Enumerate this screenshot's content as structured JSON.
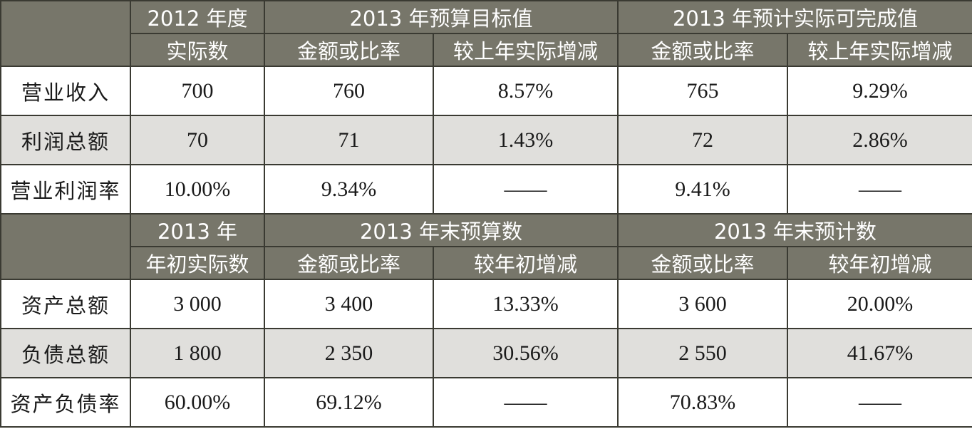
{
  "section1": {
    "header": {
      "col1": [
        "2012 年度",
        "实际数"
      ],
      "group1": "2013 年预算目标值",
      "group2": "2013 年预计实际可完成值",
      "sub": [
        "金额或比率",
        "较上年实际增减",
        "金额或比率",
        "较上年实际增减"
      ]
    },
    "rows": [
      {
        "label": "营业收入",
        "cells": [
          "700",
          "760",
          "8.57%",
          "765",
          "9.29%"
        ]
      },
      {
        "label": "利润总额",
        "cells": [
          "70",
          "71",
          "1.43%",
          "72",
          "2.86%"
        ]
      },
      {
        "label": "营业利润率",
        "cells": [
          "10.00%",
          "9.34%",
          "——",
          "9.41%",
          "——"
        ]
      }
    ]
  },
  "section2": {
    "header": {
      "col1": [
        "2013 年",
        "年初实际数"
      ],
      "group1": "2013 年末预算数",
      "group2": "2013 年末预计数",
      "sub": [
        "金额或比率",
        "较年初增减",
        "金额或比率",
        "较年初增减"
      ]
    },
    "rows": [
      {
        "label": "资产总额",
        "cells": [
          "3 000",
          "3 400",
          "13.33%",
          "3 600",
          "20.00%"
        ]
      },
      {
        "label": "负债总额",
        "cells": [
          "1 800",
          "2 350",
          "30.56%",
          "2 550",
          "41.67%"
        ]
      },
      {
        "label": "资产负债率",
        "cells": [
          "60.00%",
          "69.12%",
          "——",
          "70.83%",
          "——"
        ]
      }
    ]
  }
}
